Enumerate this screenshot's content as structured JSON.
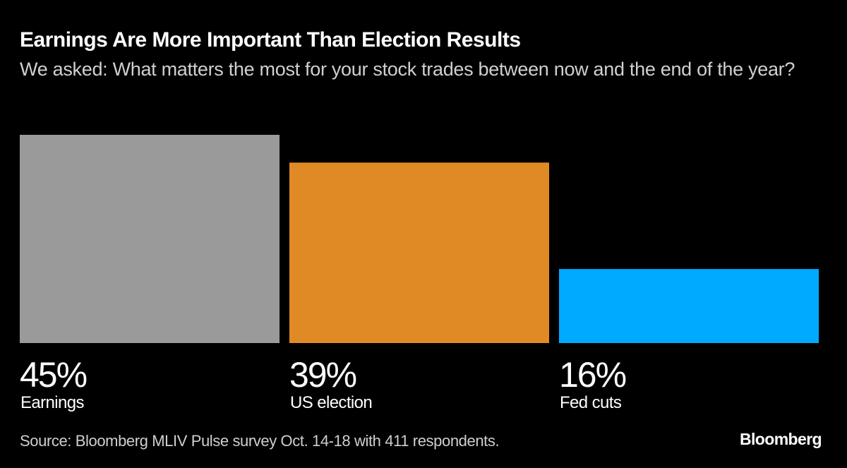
{
  "chart_data": {
    "type": "bar",
    "title": "Earnings Are More Important Than Election Results",
    "subtitle": "We asked: What matters the most for your stock trades between now and the end of the year?",
    "categories": [
      "Earnings",
      "US election",
      "Fed cuts"
    ],
    "values": [
      45,
      39,
      16
    ],
    "value_labels": [
      "45%",
      "39%",
      "16%"
    ],
    "colors": [
      "#9a9a9a",
      "#e08a26",
      "#00aaff"
    ],
    "unit": "%",
    "ylim": [
      0,
      45
    ],
    "grid": false,
    "xlabel": "",
    "ylabel": ""
  },
  "source": "Source: Bloomberg MLIV Pulse survey Oct. 14-18 with 411 respondents.",
  "logo": "Bloomberg",
  "background": "#000000"
}
